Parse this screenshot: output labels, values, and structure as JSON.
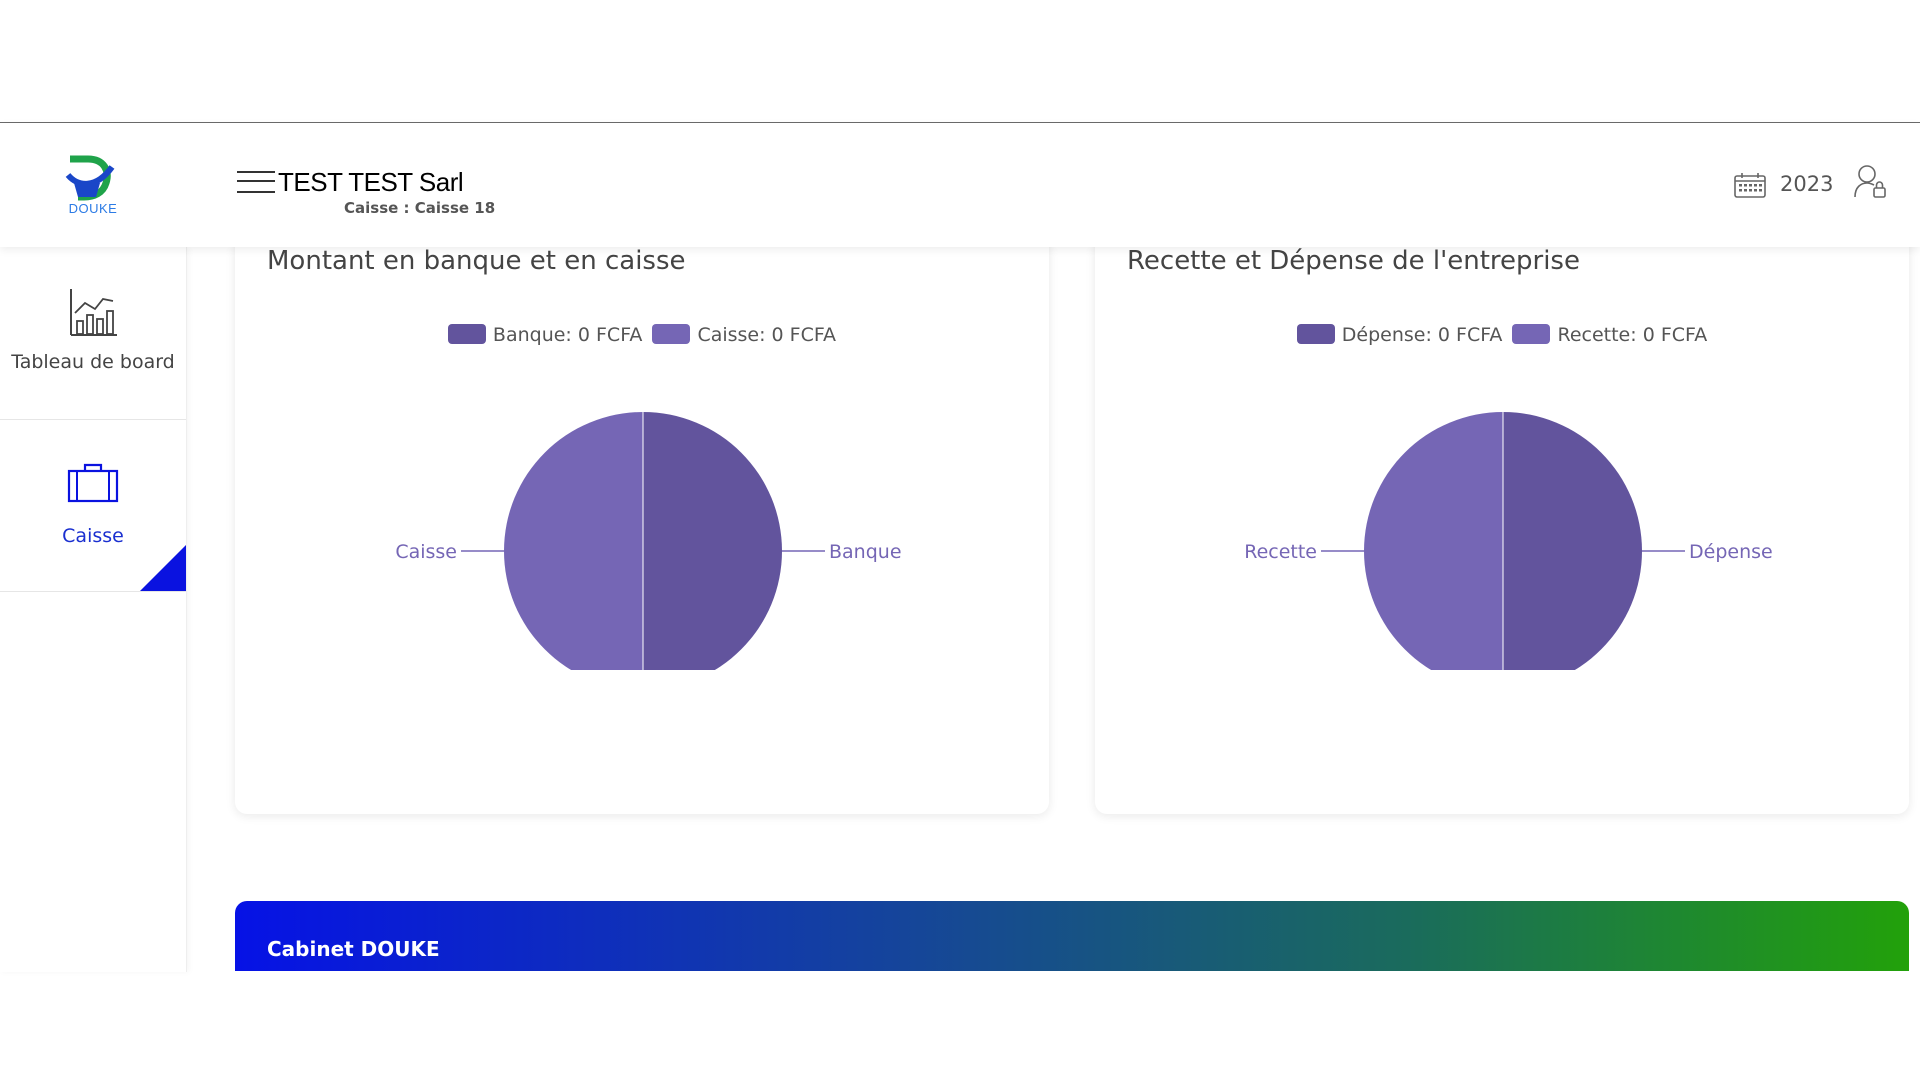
{
  "header": {
    "company": "TEST TEST Sarl",
    "subtitle": "Caisse : Caisse 18",
    "year": "2023",
    "logo_text": "DOUKE",
    "icons": {
      "menu": "hamburger-icon",
      "calendar": "calendar-icon",
      "user": "user-lock-icon"
    }
  },
  "sidebar": {
    "items": [
      {
        "label": "Tableau de board",
        "icon": "chart-icon",
        "active": false
      },
      {
        "label": "Caisse",
        "icon": "briefcase-icon",
        "active": true
      }
    ]
  },
  "charts": [
    {
      "title": "Montant en banque et en caisse",
      "legend": [
        "Banque: 0 FCFA",
        "Caisse: 0 FCFA"
      ],
      "slice_labels": [
        "Banque",
        "Caisse"
      ]
    },
    {
      "title": "Recette et Dépense de l'entreprise",
      "legend": [
        "Dépense: 0 FCFA",
        "Recette: 0 FCFA"
      ],
      "slice_labels": [
        "Dépense",
        "Recette"
      ]
    }
  ],
  "chart_data": [
    {
      "type": "pie",
      "title": "Montant en banque et en caisse",
      "categories": [
        "Banque",
        "Caisse"
      ],
      "values": [
        0,
        0
      ],
      "colors": [
        "#62549d",
        "#7566b5"
      ]
    },
    {
      "type": "pie",
      "title": "Recette et Dépense de l'entreprise",
      "categories": [
        "Dépense",
        "Recette"
      ],
      "values": [
        0,
        0
      ],
      "colors": [
        "#62549d",
        "#7566b5"
      ]
    }
  ],
  "footer": {
    "text": "Cabinet DOUKE"
  },
  "colors": {
    "accent_blue": "#0a12e0",
    "slice_dark": "#62549d",
    "slice_light": "#7566b5",
    "footer_start": "#0612e6",
    "footer_end": "#22a10a"
  }
}
